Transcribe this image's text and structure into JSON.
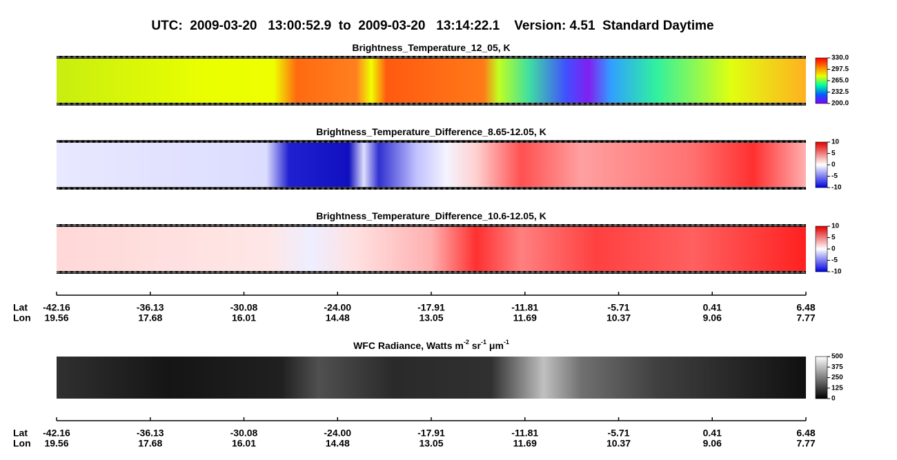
{
  "header": {
    "title": "UTC:  2009-03-20   13:00:52.9  to  2009-03-20   13:14:22.1    Version: 4.51  Standard Daytime"
  },
  "panels": [
    {
      "title": [
        {
          "text": "Brightness_Temperature_12_05, K"
        }
      ],
      "colorbar": {
        "lim": [
          200,
          330
        ],
        "ticks": [
          {
            "value": 330,
            "label": "330.0"
          },
          {
            "value": 297.5,
            "label": "297.5"
          },
          {
            "value": 265,
            "label": "265.0"
          },
          {
            "value": 232.5,
            "label": "232.5"
          },
          {
            "value": 200,
            "label": "200.0"
          }
        ]
      }
    },
    {
      "title": [
        {
          "text": "Brightness_Temperature_Difference_8.65-12.05, K"
        }
      ],
      "colorbar": {
        "lim": [
          -10,
          10
        ],
        "ticks": [
          10,
          5,
          0,
          -5,
          -10
        ]
      }
    },
    {
      "title": [
        {
          "text": "Brightness_Temperature_Difference_10.6-12.05, K"
        }
      ],
      "colorbar": {
        "lim": [
          -10,
          10
        ],
        "ticks": [
          10,
          5,
          0,
          -5,
          -10
        ]
      }
    },
    {
      "title": [
        {
          "text": "WFC Radiance, Watts m"
        },
        {
          "text": "-2",
          "sup": true
        },
        {
          "text": " sr"
        },
        {
          "text": "-1",
          "sup": true
        },
        {
          "text": " μm"
        },
        {
          "text": "-1",
          "sup": true
        }
      ],
      "colorbar": {
        "lim": [
          0,
          500
        ],
        "ticks": [
          500,
          375,
          250,
          125,
          0
        ]
      }
    }
  ],
  "axes": [
    {
      "rows": [
        "Lat",
        "Lon"
      ],
      "lat": [
        "-42.16",
        "-36.13",
        "-30.08",
        "-24.00",
        "-17.91",
        "-11.81",
        "-5.71",
        "0.41",
        "6.48"
      ],
      "lon": [
        "19.56",
        "17.68",
        "16.01",
        "14.48",
        "13.05",
        "11.69",
        "10.37",
        "9.06",
        "7.77"
      ]
    },
    {
      "rows": [
        "Lat",
        "Lon"
      ],
      "lat": [
        "-42.16",
        "-36.13",
        "-30.08",
        "-24.00",
        "-17.91",
        "-11.81",
        "-5.71",
        "0.41",
        "6.48"
      ],
      "lon": [
        "19.56",
        "17.68",
        "16.01",
        "14.48",
        "13.05",
        "11.69",
        "10.37",
        "9.06",
        "7.77"
      ]
    }
  ]
}
